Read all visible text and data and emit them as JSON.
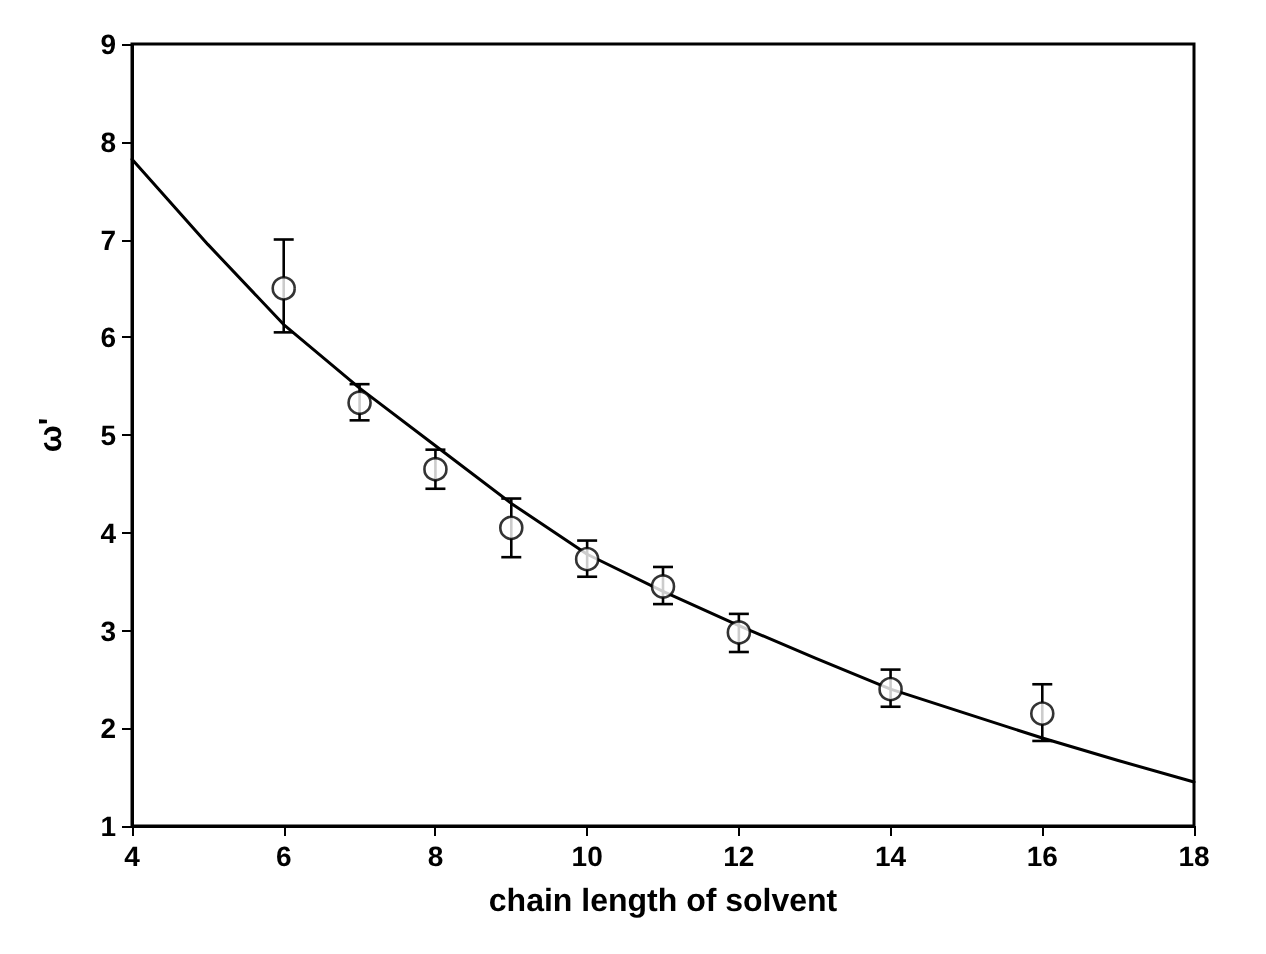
{
  "chart_data": {
    "type": "scatter",
    "xlabel": "chain length of solvent",
    "ylabel": "ω'",
    "xlim": [
      4,
      18
    ],
    "xticks": [
      4,
      6,
      8,
      10,
      12,
      14,
      16,
      18
    ],
    "ylim": [
      1,
      9
    ],
    "yticks": [
      1,
      2,
      3,
      4,
      5,
      6,
      7,
      8,
      9
    ],
    "grid": false,
    "marker": "circle",
    "series": [
      {
        "color": "#000000",
        "x": [
          6,
          7,
          8,
          9,
          10,
          11,
          12,
          14,
          16
        ],
        "values": [
          6.5,
          5.33,
          4.65,
          4.05,
          3.73,
          3.45,
          2.98,
          2.4,
          2.15
        ],
        "errors": [
          [
            6.05,
            7.0
          ],
          [
            5.15,
            5.52
          ],
          [
            4.45,
            4.85
          ],
          [
            3.75,
            4.35
          ],
          [
            3.55,
            3.92
          ],
          [
            3.27,
            3.65
          ],
          [
            2.78,
            3.17
          ],
          [
            2.22,
            2.6
          ],
          [
            1.87,
            2.45
          ]
        ]
      },
      {
        "type": "line",
        "color": "#000000",
        "line_style": "solid",
        "marker": "none",
        "x": [
          4,
          5,
          6,
          7,
          8,
          9,
          10,
          11,
          12,
          13,
          14,
          15,
          16,
          17,
          18
        ],
        "values": [
          7.82,
          6.95,
          6.13,
          5.48,
          4.89,
          4.3,
          3.78,
          3.4,
          3.05,
          2.72,
          2.4,
          2.15,
          1.9,
          1.67,
          1.45
        ]
      }
    ]
  }
}
